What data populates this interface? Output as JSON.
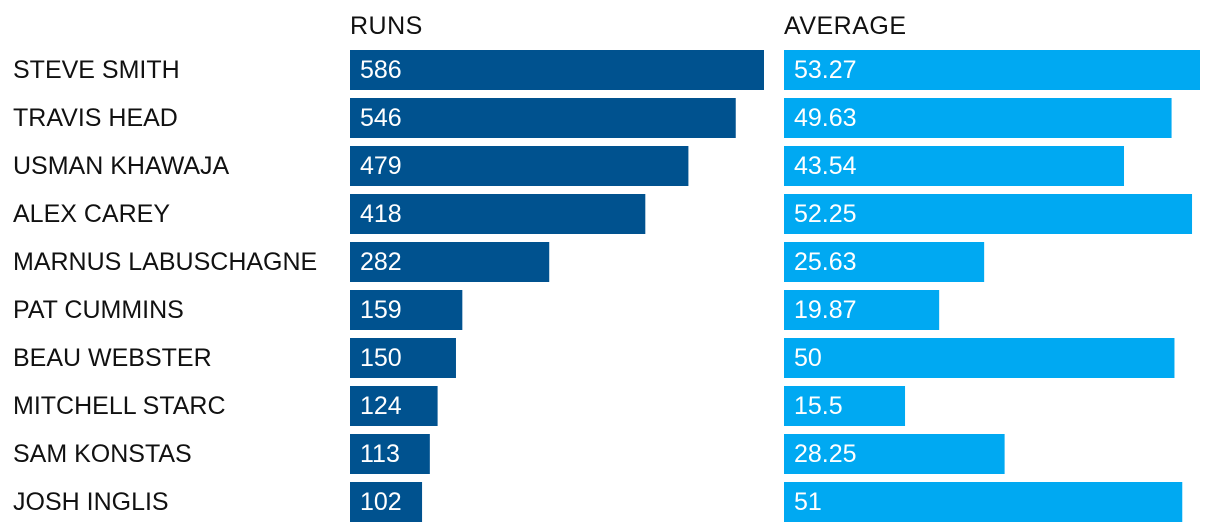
{
  "chart_data": {
    "type": "bar",
    "orientation": "horizontal",
    "title": "",
    "categories": [
      "STEVE SMITH",
      "TRAVIS HEAD",
      "USMAN KHAWAJA",
      "ALEX CAREY",
      "MARNUS LABUSCHAGNE",
      "PAT CUMMINS",
      "BEAU WEBSTER",
      "MITCHELL STARC",
      "SAM KONSTAS",
      "JOSH INGLIS"
    ],
    "series": [
      {
        "name": "RUNS",
        "color": "#00528f",
        "values": [
          586,
          546,
          479,
          418,
          282,
          159,
          150,
          124,
          113,
          102
        ],
        "labels": [
          "586",
          "546",
          "479",
          "418",
          "282",
          "159",
          "150",
          "124",
          "113",
          "102"
        ],
        "xlim": [
          0,
          586
        ]
      },
      {
        "name": "AVERAGE",
        "color": "#00a9f2",
        "values": [
          53.27,
          49.63,
          43.54,
          52.25,
          25.63,
          19.87,
          50,
          15.5,
          28.25,
          51
        ],
        "labels": [
          "53.27",
          "49.63",
          "43.54",
          "52.25",
          "25.63",
          "19.87",
          "50",
          "15.5",
          "28.25",
          "51"
        ],
        "xlim": [
          0,
          53.27
        ]
      }
    ],
    "grid": false,
    "legend": "none"
  }
}
